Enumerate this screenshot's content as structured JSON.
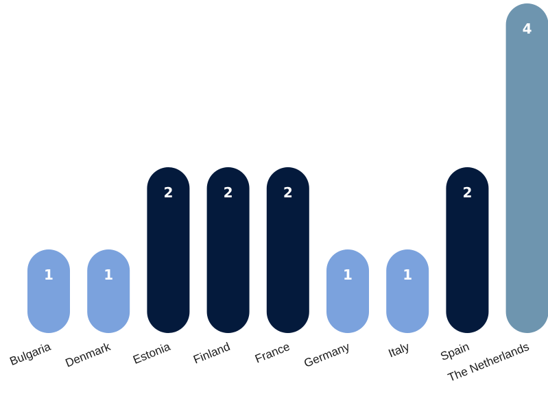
{
  "chart_data": {
    "type": "bar",
    "categories": [
      "Bulgaria",
      "Denmark",
      "Estonia",
      "Finland",
      "France",
      "Germany",
      "Italy",
      "Spain",
      "The Netherlands"
    ],
    "values": [
      1,
      1,
      2,
      2,
      2,
      1,
      1,
      2,
      4
    ],
    "data_labels": [
      "1",
      "1",
      "2",
      "2",
      "2",
      "1",
      "1",
      "2",
      "4"
    ],
    "ylim": [
      0,
      4
    ],
    "grid": false,
    "legend": "none",
    "colors": {
      "value_1": "#7ba2dd",
      "value_2": "#041a3c",
      "value_4": "#6e95af",
      "data_label": "#ffffff",
      "category_label": "#1a1a1a"
    }
  }
}
